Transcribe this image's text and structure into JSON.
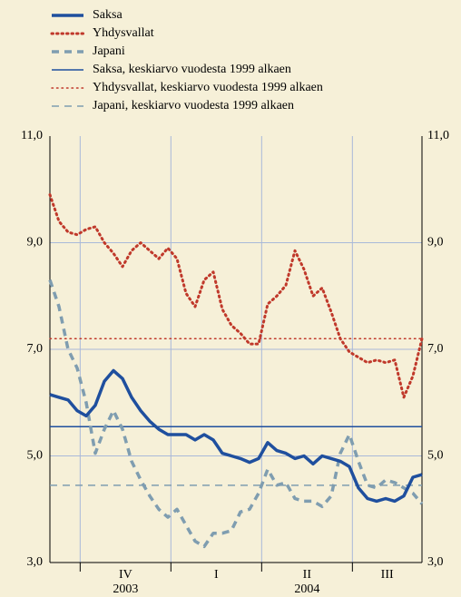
{
  "chart_data": {
    "type": "line",
    "xlim": [
      0,
      12.3
    ],
    "xticks": [
      1,
      4,
      7,
      10
    ],
    "quarters": [
      {
        "label": "IV",
        "year": "2003"
      },
      {
        "label": "I"
      },
      {
        "label": "II",
        "year": "2004"
      },
      {
        "label": "III"
      }
    ],
    "ylim": [
      3,
      11
    ],
    "yticks": [
      {
        "value": 3,
        "label": "3,0"
      },
      {
        "value": 5,
        "label": "5,0"
      },
      {
        "value": 7,
        "label": "7,0"
      },
      {
        "value": 9,
        "label": "9,0"
      },
      {
        "value": 11,
        "label": "11,0"
      }
    ],
    "grid": true,
    "x": [
      0,
      0.3,
      0.6,
      0.9,
      1.2,
      1.5,
      1.8,
      2.1,
      2.4,
      2.7,
      3.0,
      3.3,
      3.6,
      3.9,
      4.2,
      4.5,
      4.8,
      5.1,
      5.4,
      5.7,
      6.0,
      6.3,
      6.6,
      6.9,
      7.2,
      7.5,
      7.8,
      8.1,
      8.4,
      8.7,
      9.0,
      9.3,
      9.6,
      9.9,
      10.2,
      10.5,
      10.8,
      11.1,
      11.4,
      11.7,
      12.0,
      12.3
    ],
    "series": [
      {
        "name": "Saksa",
        "color": "#1f4f9e",
        "style": "solid",
        "width": 3.5,
        "values": [
          6.15,
          6.1,
          6.05,
          5.85,
          5.75,
          5.95,
          6.4,
          6.6,
          6.45,
          6.1,
          5.85,
          5.65,
          5.5,
          5.4,
          5.4,
          5.4,
          5.3,
          5.4,
          5.3,
          5.05,
          5.0,
          4.95,
          4.88,
          4.95,
          5.25,
          5.1,
          5.05,
          4.95,
          5.0,
          4.85,
          5.0,
          4.95,
          4.9,
          4.8,
          4.4,
          4.2,
          4.15,
          4.2,
          4.15,
          4.25,
          4.6,
          4.65
        ]
      },
      {
        "name": "Yhdysvallat",
        "color": "#c0392b",
        "style": "dotted",
        "width": 3,
        "values": [
          9.9,
          9.4,
          9.2,
          9.15,
          9.25,
          9.3,
          9.0,
          8.8,
          8.55,
          8.85,
          9.0,
          8.85,
          8.7,
          8.9,
          8.7,
          8.05,
          7.8,
          8.3,
          8.45,
          7.75,
          7.45,
          7.3,
          7.1,
          7.1,
          7.85,
          8.0,
          8.2,
          8.85,
          8.5,
          8.0,
          8.15,
          7.7,
          7.2,
          6.95,
          6.85,
          6.75,
          6.8,
          6.75,
          6.8,
          6.1,
          6.5,
          7.2
        ]
      },
      {
        "name": "Japani",
        "color": "#7f9db0",
        "style": "dashed",
        "width": 3.5,
        "values": [
          8.3,
          7.8,
          7.0,
          6.65,
          6.0,
          5.05,
          5.5,
          5.85,
          5.5,
          4.9,
          4.55,
          4.25,
          4.0,
          3.85,
          4.0,
          3.7,
          3.4,
          3.3,
          3.55,
          3.55,
          3.6,
          3.95,
          4.0,
          4.3,
          4.75,
          4.45,
          4.5,
          4.2,
          4.15,
          4.15,
          4.05,
          4.25,
          5.05,
          5.4,
          4.9,
          4.45,
          4.4,
          4.55,
          4.5,
          4.4,
          4.3,
          4.1
        ]
      },
      {
        "name": "Saksa, keskiarvo vuodesta 1999 alkaen",
        "color": "#1f4f9e",
        "style": "solid",
        "width": 1.5,
        "value": 5.55
      },
      {
        "name": "Yhdysvallat, keskiarvo vuodesta 1999 alkaen",
        "color": "#c0392b",
        "style": "dotted",
        "width": 1.5,
        "value": 7.2
      },
      {
        "name": "Japani, keskiarvo vuodesta 1999 alkaen",
        "color": "#7f9db0",
        "style": "dashed",
        "width": 1.5,
        "value": 4.45
      }
    ]
  }
}
